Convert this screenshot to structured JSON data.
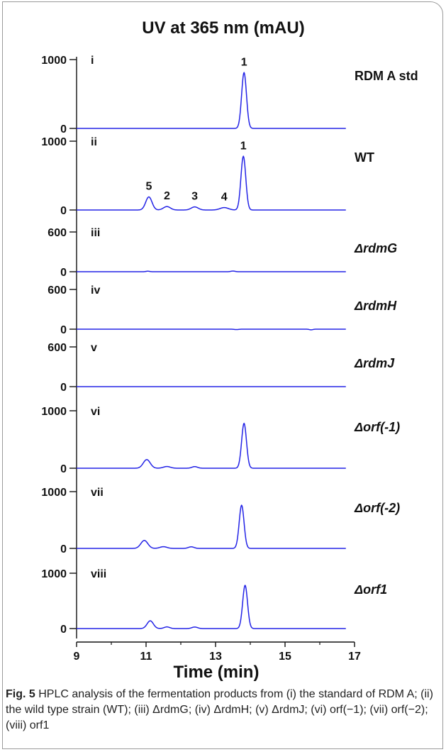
{
  "chart_data": {
    "type": "line",
    "title": "UV at 365 nm (mAU)",
    "xlabel": "Time (min)",
    "xlim": [
      9,
      17
    ],
    "x_ticks": [
      "9",
      "11",
      "13",
      "15",
      "17"
    ],
    "line_color": "#2323e6",
    "panels": [
      {
        "roman": "i",
        "label": "RDM A std",
        "ymax_label": "1000",
        "ymin_label": "0",
        "ymax": 1000,
        "peaks": [
          {
            "t": 13.82,
            "h": 810,
            "w": 0.07,
            "label": "1"
          }
        ]
      },
      {
        "roman": "ii",
        "label": "WT",
        "ymax_label": "1000",
        "ymin_label": "0",
        "ymax": 1000,
        "peaks": [
          {
            "t": 11.08,
            "h": 190,
            "w": 0.09,
            "label": "5"
          },
          {
            "t": 11.6,
            "h": 50,
            "w": 0.1,
            "label": "2"
          },
          {
            "t": 12.4,
            "h": 45,
            "w": 0.1,
            "label": "3"
          },
          {
            "t": 13.25,
            "h": 35,
            "w": 0.12,
            "label": "4"
          },
          {
            "t": 13.8,
            "h": 780,
            "w": 0.07,
            "label": "1"
          }
        ]
      },
      {
        "roman": "iii",
        "label": "ΔrdmG",
        "ymax_label": "600",
        "ymin_label": "0",
        "ymax": 600,
        "peaks": [
          {
            "t": 11.05,
            "h": 8,
            "w": 0.05
          },
          {
            "t": 13.5,
            "h": 10,
            "w": 0.06
          }
        ]
      },
      {
        "roman": "iv",
        "label": "ΔrdmH",
        "ymax_label": "600",
        "ymin_label": "0",
        "ymax": 600,
        "peaks": [
          {
            "t": 13.6,
            "h": -6,
            "w": 0.06
          },
          {
            "t": 15.75,
            "h": -10,
            "w": 0.05
          }
        ]
      },
      {
        "roman": "v",
        "label": "ΔrdmJ",
        "ymax_label": "600",
        "ymin_label": "0",
        "ymax": 600,
        "peaks": []
      },
      {
        "roman": "vi",
        "label": "Δorf(-1)",
        "ymax_label": "1000",
        "ymin_label": "0",
        "ymax": 1000,
        "peaks": [
          {
            "t": 11.02,
            "h": 150,
            "w": 0.1
          },
          {
            "t": 11.6,
            "h": 30,
            "w": 0.1
          },
          {
            "t": 12.4,
            "h": 28,
            "w": 0.08
          },
          {
            "t": 13.82,
            "h": 780,
            "w": 0.07
          }
        ]
      },
      {
        "roman": "vii",
        "label": "Δorf(-2)",
        "ymax_label": "1000",
        "ymin_label": "0",
        "ymax": 1000,
        "peaks": [
          {
            "t": 10.95,
            "h": 140,
            "w": 0.1
          },
          {
            "t": 11.5,
            "h": 30,
            "w": 0.1
          },
          {
            "t": 12.3,
            "h": 28,
            "w": 0.08
          },
          {
            "t": 13.75,
            "h": 760,
            "w": 0.07
          }
        ]
      },
      {
        "roman": "viii",
        "label": "Δorf1",
        "ymax_label": "1000",
        "ymin_label": "0",
        "ymax": 1000,
        "peaks": [
          {
            "t": 11.12,
            "h": 140,
            "w": 0.09
          },
          {
            "t": 11.6,
            "h": 30,
            "w": 0.08
          },
          {
            "t": 12.4,
            "h": 28,
            "w": 0.08
          },
          {
            "t": 13.85,
            "h": 780,
            "w": 0.07
          }
        ]
      }
    ]
  },
  "caption": {
    "fig_label": "Fig. 5",
    "text": "HPLC analysis of the fermentation products from (i) the standard of RDM A; (ii) the wild type strain (WT); (iii) ΔrdmG; (iv) ΔrdmH; (v) ΔrdmJ; (vi) orf(−1); (vii) orf(−2); (viii) orf1"
  }
}
